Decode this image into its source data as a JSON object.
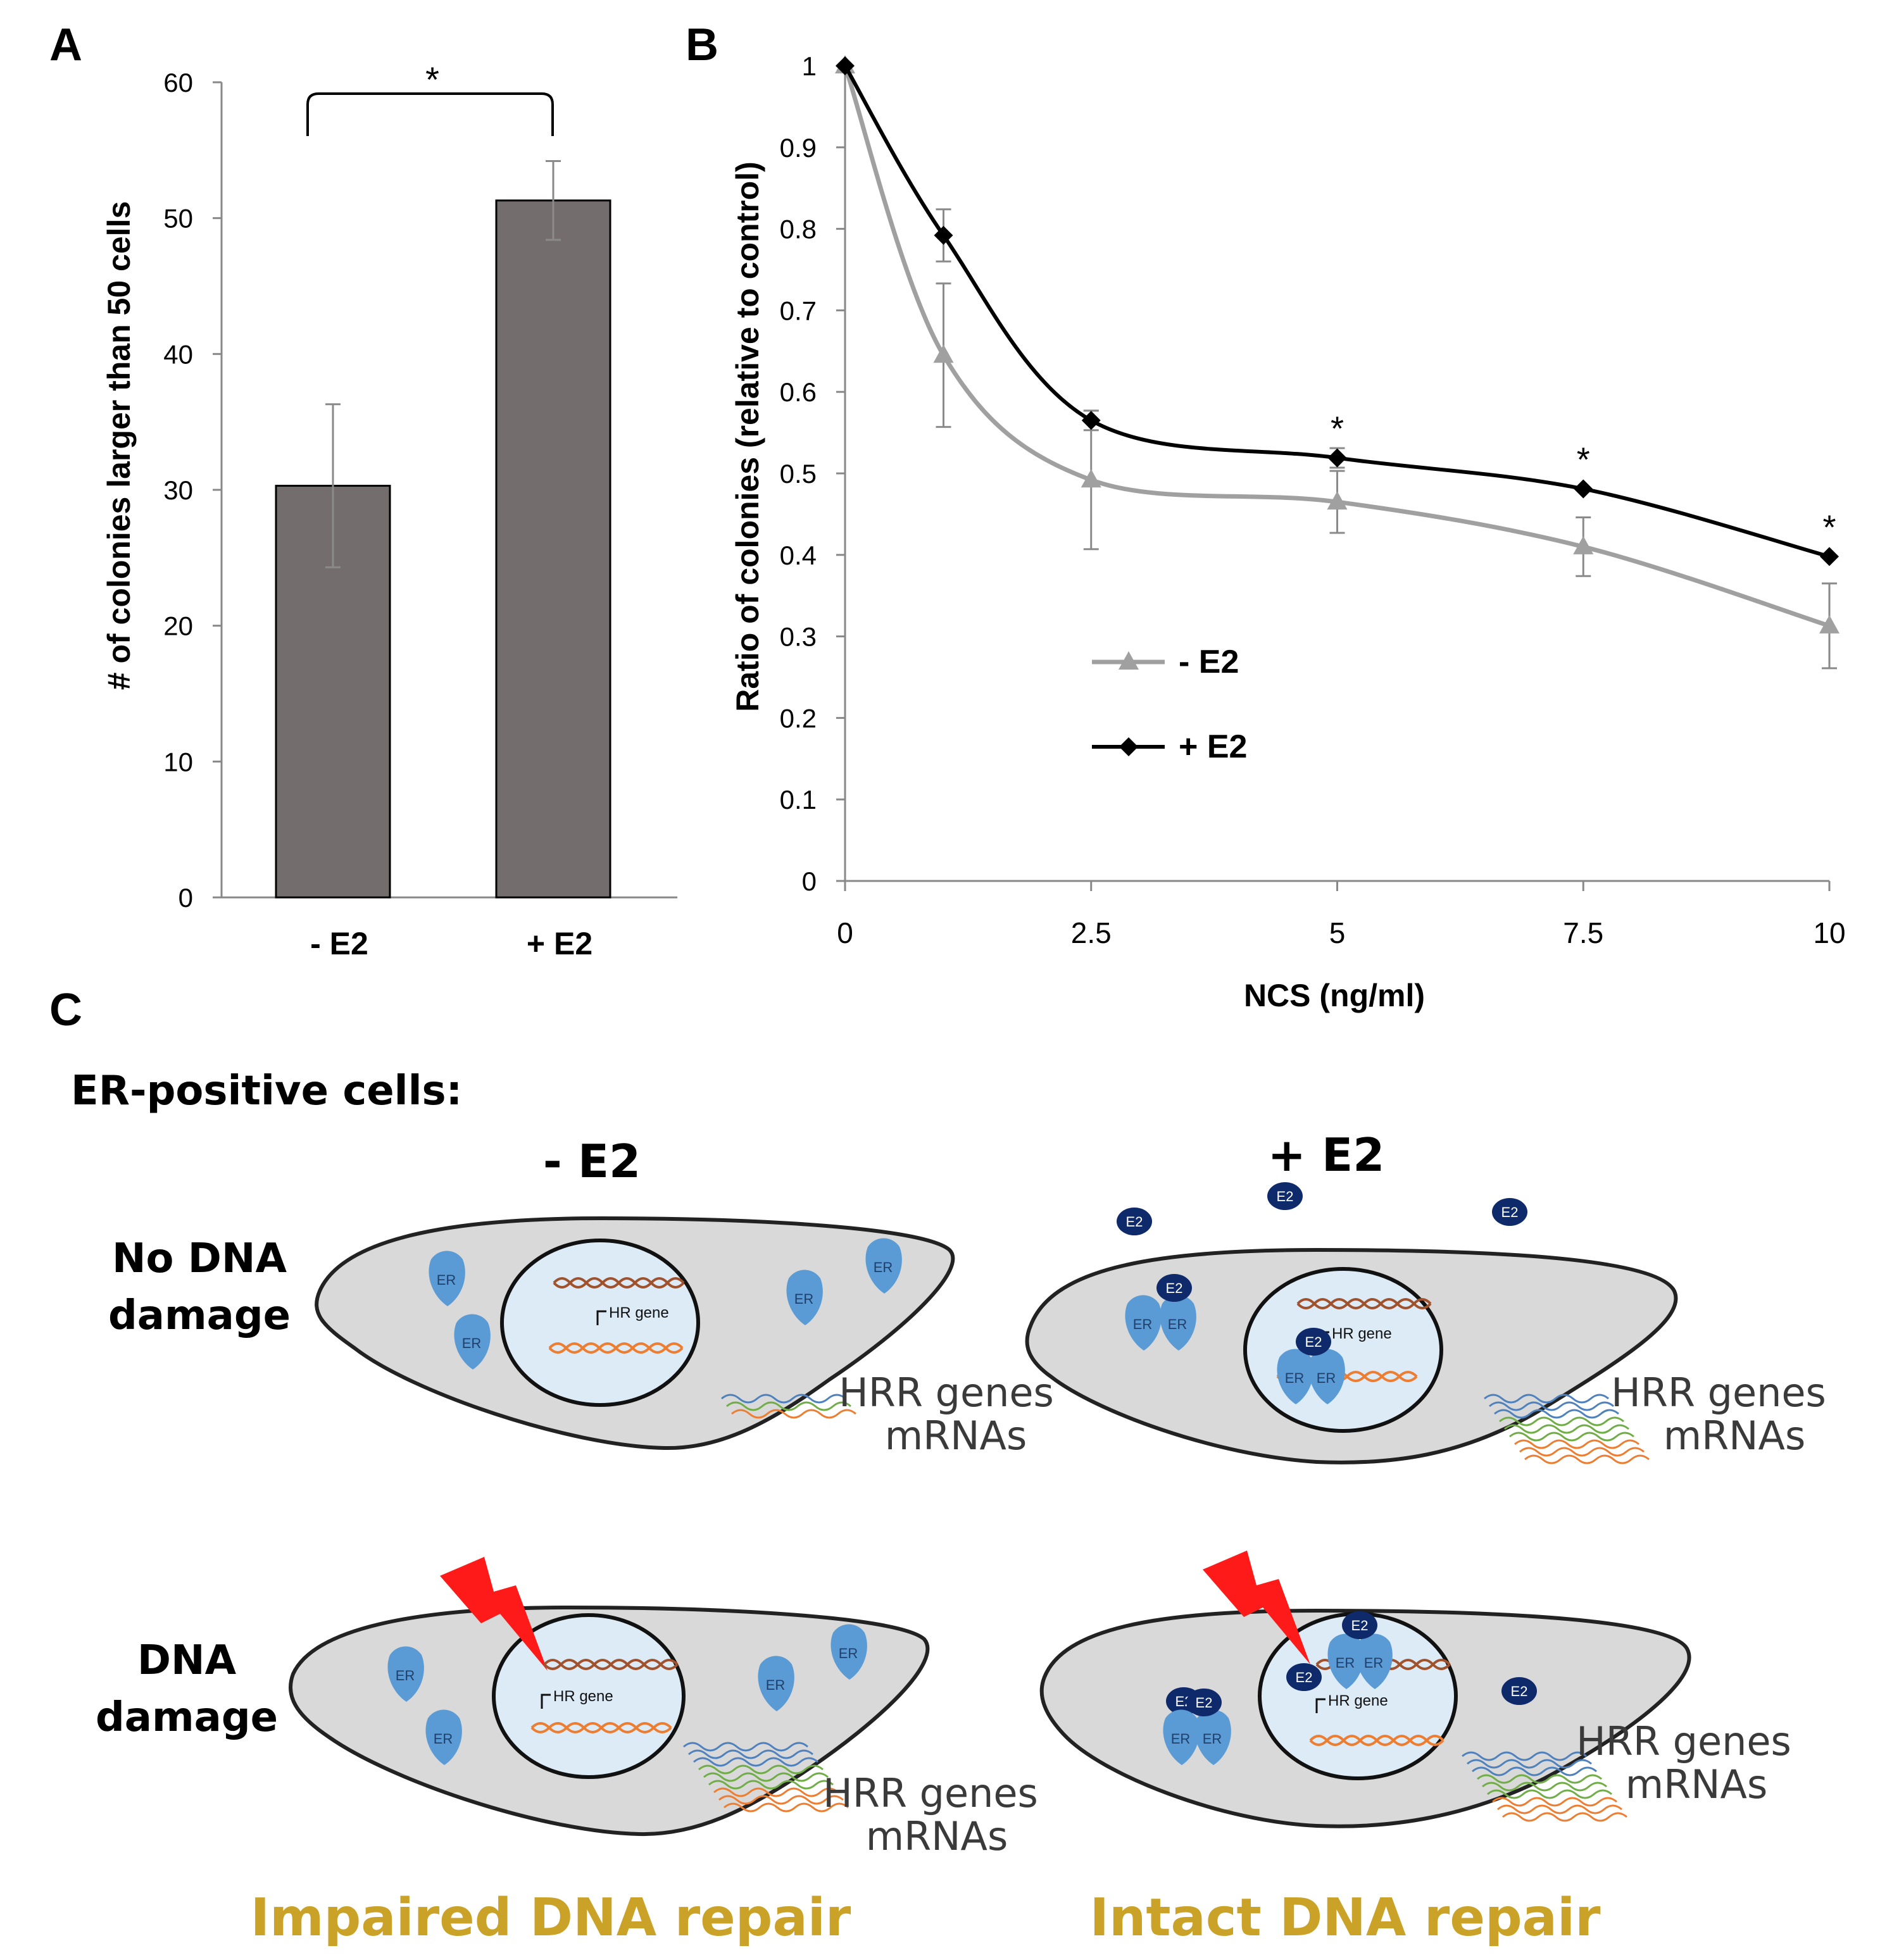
{
  "panels": {
    "a_label": "A",
    "b_label": "B",
    "c_label": "C"
  },
  "chart_data": [
    {
      "panel": "A",
      "type": "bar",
      "categories": [
        "- E2",
        "+ E2"
      ],
      "values": [
        30.3,
        51.3
      ],
      "errors": [
        6.0,
        2.9
      ],
      "ylabel": "# of colonies larger than 50 cells",
      "xlabel": "",
      "ylim": [
        0,
        60
      ],
      "yticks": [
        "0",
        "10",
        "20",
        "30",
        "40",
        "50",
        "60"
      ],
      "significance": "*",
      "bar_color": "#746d6d",
      "grid": false
    },
    {
      "panel": "B",
      "type": "line",
      "x": [
        0,
        1,
        2.5,
        5,
        7.5,
        10
      ],
      "xticks": [
        "0",
        "2.5",
        "5",
        "7.5",
        "10"
      ],
      "yticks": [
        "0",
        "0.1",
        "0.2",
        "0.3",
        "0.4",
        "0.5",
        "0.6",
        "0.7",
        "0.8",
        "0.9",
        "1"
      ],
      "xlim": [
        0,
        10
      ],
      "ylim": [
        0,
        1
      ],
      "xlabel": "NCS (ng/ml)",
      "ylabel": "Ratio of colonies (relative to control)",
      "series": [
        {
          "name": "- E2",
          "values": [
            1,
            0.645,
            0.492,
            0.465,
            0.41,
            0.313
          ],
          "errors": [
            0,
            0.088,
            0.085,
            0.038,
            0.036,
            0.052
          ],
          "color": "#a0a0a0",
          "marker": "triangle"
        },
        {
          "name": "+ E2",
          "values": [
            1,
            0.792,
            0.565,
            0.519,
            0.481,
            0.398
          ],
          "errors": [
            0,
            0.032,
            0.012,
            0.012,
            0,
            0
          ],
          "color": "#000000",
          "marker": "diamond"
        }
      ],
      "significance_x": [
        5,
        7.5,
        10
      ],
      "significance_mark": "*",
      "legend_position": "lower-left",
      "grid": false
    }
  ],
  "diagram": {
    "heading": "ER-positive cells:",
    "col_minus": "- E2",
    "col_plus": "+ E2",
    "row_no_damage_line1": "No DNA",
    "row_no_damage_line2": "damage",
    "row_damage_line1": "DNA",
    "row_damage_line2": "damage",
    "er_label": "ER",
    "e2_label": "E2",
    "hr_gene": "HR gene",
    "hrr_line1": "HRR genes",
    "hrr_line2": "mRNAs",
    "outcome_left": "Impaired DNA repair",
    "outcome_right": "Intact DNA repair",
    "colors": {
      "cell_fill": "#d9d9d9",
      "nucleus_fill": "#ddebf7",
      "er_fill": "#5b9bd5",
      "e2_fill": "#0f2a6b",
      "lightning": "#ff1a1a",
      "outcome_text": "#c9a227",
      "mrna_blue": "#4f81bd",
      "mrna_green": "#70ad47",
      "mrna_orange": "#ed7d31",
      "dna_brown": "#a0522d"
    }
  }
}
